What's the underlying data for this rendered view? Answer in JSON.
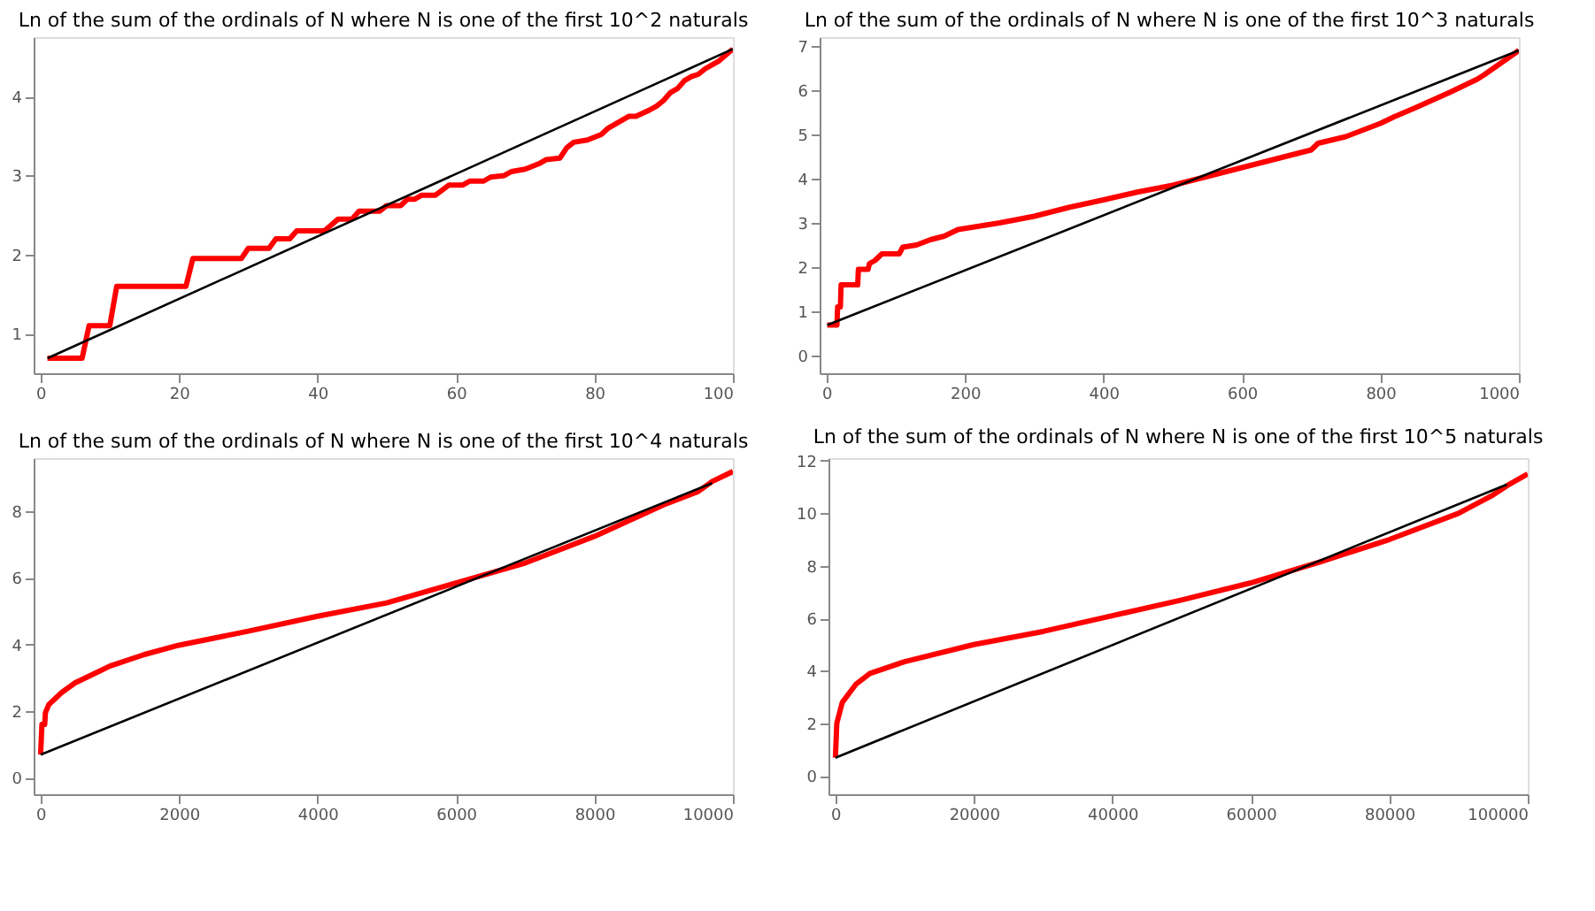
{
  "chart_data": [
    {
      "type": "line",
      "title": "Ln of the sum of the ordinals of N where N is one of the first 10^2 naturals",
      "xlim": [
        -1,
        100
      ],
      "ylim": [
        0.5,
        4.75
      ],
      "xticks": [
        0,
        20,
        40,
        60,
        80,
        100
      ],
      "yticks": [
        1,
        2,
        3,
        4
      ],
      "grid": false,
      "line_style": "solid",
      "marker": "none",
      "series": [
        {
          "color": "#ff0000",
          "x": [
            1,
            6,
            7,
            10,
            11,
            21,
            22,
            29,
            30,
            33,
            34,
            36,
            37,
            41,
            43,
            45,
            46,
            49,
            50,
            52,
            53,
            54,
            55,
            57,
            59,
            61,
            62,
            64,
            65,
            67,
            68,
            70,
            72,
            73,
            75,
            76,
            77,
            79,
            81,
            82,
            84,
            85,
            86,
            88,
            89,
            90,
            91,
            92,
            93,
            94,
            95,
            96,
            98,
            100
          ],
          "values": [
            0.69,
            0.69,
            1.1,
            1.1,
            1.6,
            1.6,
            1.95,
            1.95,
            2.08,
            2.08,
            2.2,
            2.2,
            2.3,
            2.3,
            2.45,
            2.45,
            2.55,
            2.55,
            2.62,
            2.62,
            2.7,
            2.7,
            2.75,
            2.75,
            2.88,
            2.88,
            2.93,
            2.93,
            2.98,
            3.0,
            3.05,
            3.08,
            3.15,
            3.2,
            3.22,
            3.35,
            3.42,
            3.45,
            3.52,
            3.6,
            3.7,
            3.75,
            3.75,
            3.83,
            3.88,
            3.95,
            4.05,
            4.1,
            4.2,
            4.25,
            4.28,
            4.35,
            4.45,
            4.6
          ]
        },
        {
          "color": "#000000",
          "x": [
            1,
            100
          ],
          "values": [
            0.69,
            4.6
          ]
        }
      ]
    },
    {
      "type": "line",
      "title": "Ln of the sum of the ordinals of N where N is one of the first 10^3 naturals",
      "xlim": [
        -10,
        1000
      ],
      "ylim": [
        -0.4,
        7.2
      ],
      "xticks": [
        0,
        200,
        400,
        600,
        800,
        1000
      ],
      "yticks": [
        0,
        1,
        2,
        3,
        4,
        5,
        6,
        7
      ],
      "grid": false,
      "line_style": "solid",
      "marker": "none",
      "series": [
        {
          "color": "#ff0000",
          "x": [
            1,
            15,
            16,
            20,
            21,
            45,
            46,
            60,
            62,
            70,
            80,
            105,
            110,
            130,
            150,
            170,
            190,
            250,
            300,
            350,
            400,
            450,
            500,
            550,
            600,
            650,
            700,
            710,
            750,
            800,
            820,
            850,
            900,
            940,
            950,
            1000
          ],
          "values": [
            0.69,
            0.69,
            1.1,
            1.1,
            1.6,
            1.6,
            1.95,
            1.95,
            2.08,
            2.15,
            2.3,
            2.3,
            2.45,
            2.5,
            2.62,
            2.7,
            2.85,
            3.0,
            3.15,
            3.35,
            3.52,
            3.7,
            3.85,
            4.05,
            4.25,
            4.45,
            4.65,
            4.8,
            4.95,
            5.25,
            5.4,
            5.6,
            5.95,
            6.25,
            6.35,
            6.9
          ]
        },
        {
          "color": "#000000",
          "x": [
            1,
            1000
          ],
          "values": [
            0.69,
            6.9
          ]
        }
      ]
    },
    {
      "type": "line",
      "title": "Ln of the sum of the ordinals of N where N is one of the first 10^4 naturals",
      "xlim": [
        -100,
        10000
      ],
      "ylim": [
        -0.5,
        9.6
      ],
      "xticks": [
        0,
        2000,
        4000,
        6000,
        8000,
        10000
      ],
      "yticks": [
        0,
        2,
        4,
        6,
        8
      ],
      "grid": false,
      "line_style": "solid",
      "marker": "none",
      "series": [
        {
          "color": "#ff0000",
          "x": [
            1,
            20,
            60,
            70,
            120,
            200,
            300,
            500,
            800,
            1000,
            1500,
            2000,
            3000,
            4000,
            5000,
            6000,
            7000,
            8000,
            9000,
            9500,
            9700,
            10000
          ],
          "values": [
            0.69,
            1.6,
            1.6,
            1.95,
            2.2,
            2.35,
            2.55,
            2.85,
            3.15,
            3.35,
            3.7,
            3.98,
            4.4,
            4.85,
            5.25,
            5.85,
            6.45,
            7.25,
            8.2,
            8.6,
            8.9,
            9.2
          ]
        },
        {
          "color": "#000000",
          "x": [
            1,
            9700
          ],
          "values": [
            0.69,
            8.85
          ]
        }
      ]
    },
    {
      "type": "line",
      "title": "Ln of the sum of the ordinals of N where N is one of the first 10^5 naturals",
      "xlim": [
        -1000,
        100000
      ],
      "ylim": [
        -0.7,
        12.1
      ],
      "xticks": [
        0,
        20000,
        40000,
        60000,
        80000,
        100000
      ],
      "yticks": [
        0,
        2,
        4,
        6,
        8,
        10,
        12
      ],
      "grid": false,
      "line_style": "solid",
      "marker": "none",
      "series": [
        {
          "color": "#ff0000",
          "x": [
            1,
            200,
            1000,
            3000,
            5000,
            10000,
            20000,
            30000,
            40000,
            50000,
            60000,
            70000,
            80000,
            90000,
            95000,
            97000,
            100000
          ],
          "values": [
            0.69,
            2.0,
            2.8,
            3.5,
            3.9,
            4.35,
            5.0,
            5.5,
            6.1,
            6.7,
            7.35,
            8.15,
            9.0,
            10.0,
            10.7,
            11.05,
            11.5
          ]
        },
        {
          "color": "#000000",
          "x": [
            1,
            97000
          ],
          "values": [
            0.69,
            11.1
          ]
        }
      ]
    }
  ]
}
